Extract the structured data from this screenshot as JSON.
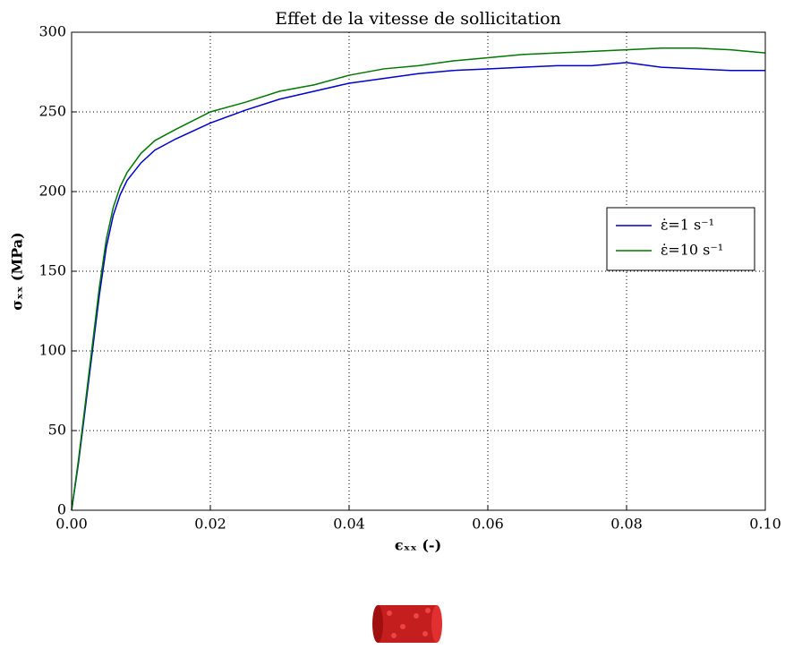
{
  "chart_data": {
    "type": "line",
    "title": "Effet de la vitesse de sollicitation",
    "xlabel": "ϵₓₓ (-)",
    "ylabel": "σₓₓ (MPa)",
    "x": [
      0,
      0.001,
      0.002,
      0.003,
      0.004,
      0.005,
      0.006,
      0.007,
      0.008,
      0.01,
      0.012,
      0.015,
      0.02,
      0.025,
      0.03,
      0.035,
      0.04,
      0.045,
      0.05,
      0.055,
      0.06,
      0.065,
      0.07,
      0.075,
      0.08,
      0.085,
      0.09,
      0.095,
      0.1
    ],
    "series": [
      {
        "name": "ε̇=1 s⁻¹",
        "color": "#0000cc",
        "values": [
          0,
          30,
          65,
          100,
          135,
          165,
          185,
          198,
          207,
          218,
          226,
          233,
          243,
          251,
          258,
          263,
          268,
          271,
          274,
          276,
          277,
          278,
          279,
          279,
          281,
          278,
          277,
          276,
          276
        ]
      },
      {
        "name": "ε̇=10 s⁻¹",
        "color": "#007700",
        "values": [
          0,
          32,
          68,
          104,
          140,
          170,
          190,
          203,
          212,
          224,
          232,
          239,
          250,
          256,
          263,
          267,
          273,
          277,
          279,
          282,
          284,
          286,
          287,
          288,
          289,
          290,
          290,
          289,
          287
        ]
      }
    ],
    "xlim": [
      0,
      0.1
    ],
    "xticks": [
      {
        "value": 0,
        "label": "0.00"
      },
      {
        "value": 0.02,
        "label": "0.02"
      },
      {
        "value": 0.04,
        "label": "0.04"
      },
      {
        "value": 0.06,
        "label": "0.06"
      },
      {
        "value": 0.08,
        "label": "0.08"
      },
      {
        "value": 0.1,
        "label": "0.10"
      }
    ],
    "ylim": [
      0,
      300
    ],
    "yticks": [
      0,
      50,
      100,
      150,
      200,
      250,
      300
    ],
    "grid": true,
    "legend": "center right"
  }
}
